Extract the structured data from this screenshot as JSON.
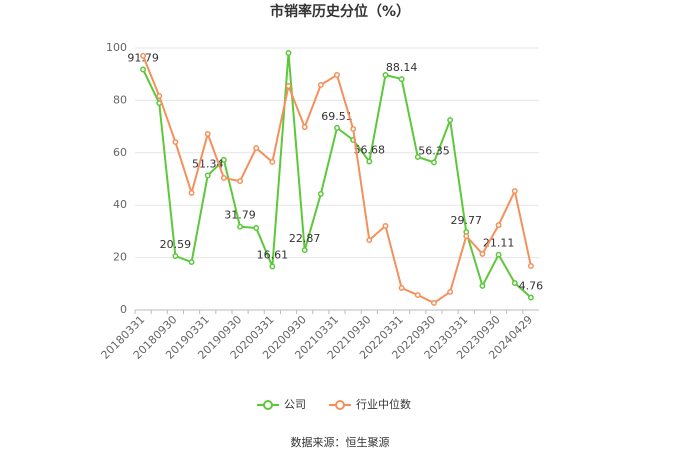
{
  "chart_data": {
    "type": "line",
    "title": "市销率历史分位（%）",
    "source": "数据来源：恒生聚源",
    "categories": [
      "20180331",
      null,
      "20180930",
      null,
      "20190331",
      null,
      "20190930",
      null,
      "20200331",
      null,
      "20200930",
      null,
      "20210331",
      null,
      "20210930",
      null,
      "20220331",
      null,
      "20220930",
      null,
      "20230331",
      null,
      "20230930",
      null,
      "20240429"
    ],
    "series": [
      {
        "name": "公司",
        "color": "#5cc83a",
        "values": [
          91.79,
          79,
          20.59,
          18.3,
          51.34,
          57.3,
          31.79,
          31.3,
          16.61,
          98.1,
          22.87,
          44.3,
          69.51,
          64.9,
          56.68,
          89.7,
          88.14,
          58.4,
          56.35,
          72.5,
          29.77,
          9.2,
          21.11,
          10.3,
          4.76
        ],
        "value_labels": [
          "91.79",
          null,
          "20.59",
          null,
          "51.34",
          null,
          "31.79",
          null,
          "16.61",
          null,
          "22.87",
          null,
          "69.51",
          null,
          "56.68",
          null,
          "88.14",
          null,
          "56.35",
          null,
          "29.77",
          null,
          "21.11",
          null,
          "4.76"
        ]
      },
      {
        "name": "行业中位数",
        "color": "#f5905c",
        "values": [
          97,
          81.7,
          64.1,
          44.7,
          67.2,
          50.4,
          49.2,
          61.8,
          56.5,
          85.5,
          69.8,
          85.9,
          89.7,
          69.1,
          26.7,
          32.1,
          8.4,
          5.7,
          2.7,
          6.9,
          28.2,
          21.4,
          32.4,
          45.4,
          16.8
        ]
      }
    ],
    "ylim": [
      0,
      100
    ],
    "yticks": [
      0,
      20,
      40,
      60,
      80,
      100
    ],
    "grid": true,
    "legend": "bottom"
  }
}
